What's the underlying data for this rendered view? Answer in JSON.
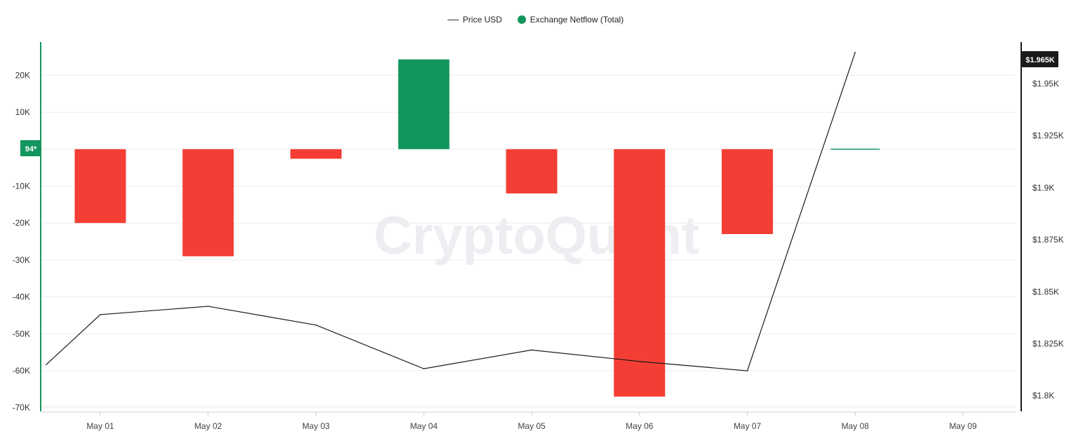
{
  "legend": {
    "price_label": "Price USD",
    "netflow_label": "Exchange Netflow (Total)"
  },
  "watermark": "CryptoQuant",
  "left_marker_label": "94*",
  "right_marker_label": "$1.965K",
  "colors": {
    "positive": "#13965d",
    "negative": "#f43e35",
    "price_line": "#1a1a1a",
    "left_axis": "#13965d",
    "right_axis": "#1a1a1a",
    "grid": "#ececec",
    "watermark": "#eeeef2"
  },
  "chart_data": {
    "type": "bar",
    "categories": [
      "May 01",
      "May 02",
      "May 03",
      "May 04",
      "May 05",
      "May 06",
      "May 07",
      "May 08",
      "May 09"
    ],
    "series": [
      {
        "name": "Exchange Netflow (Total)",
        "type": "bar",
        "axis": "left",
        "values": [
          -20000,
          -29000,
          -2600,
          24300,
          -12000,
          -67000,
          -23000,
          94,
          null
        ]
      },
      {
        "name": "Price USD",
        "type": "line",
        "axis": "right",
        "x": [
          "Apr 30",
          "May 01",
          "May 02",
          "May 03",
          "May 04",
          "May 05",
          "May 06",
          "May 07",
          "May 08"
        ],
        "values": [
          1815,
          1839,
          1843,
          1834,
          1813,
          1822,
          1816.5,
          1812,
          1965
        ]
      }
    ],
    "left_axis": {
      "ticks": [
        20000,
        10000,
        0,
        -10000,
        -20000,
        -30000,
        -40000,
        -50000,
        -60000,
        -70000
      ],
      "tick_labels": [
        "20K",
        "10K",
        "",
        "-10K",
        "-20K",
        "-30K",
        "-40K",
        "-50K",
        "-60K",
        "-70K"
      ],
      "range": [
        -71000,
        29000
      ]
    },
    "right_axis": {
      "ticks": [
        1950,
        1925,
        1900,
        1875,
        1850,
        1825,
        1800
      ],
      "tick_labels": [
        "$1.95K",
        "$1.925K",
        "$1.9K",
        "$1.875K",
        "$1.85K",
        "$1.825K",
        "$1.8K"
      ],
      "range": [
        1792.5,
        1970
      ]
    },
    "grid": true,
    "legend_position": "top-center"
  }
}
